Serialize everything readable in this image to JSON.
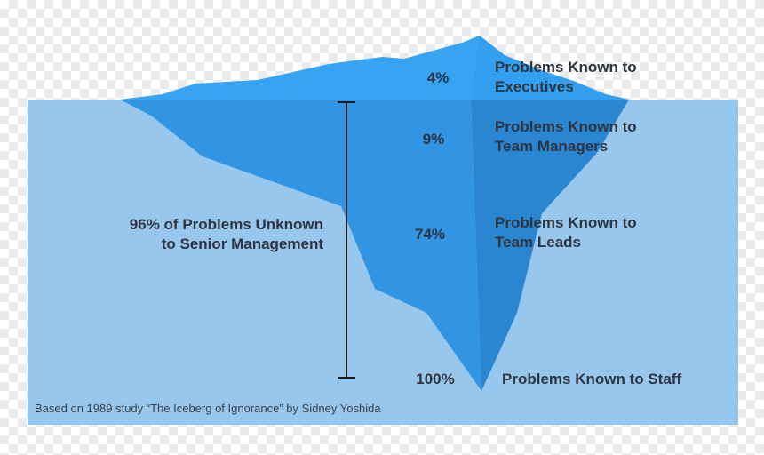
{
  "colors": {
    "water": "#97c7ec",
    "ice_above": "#37a4f2",
    "ice_front": "#3195e3",
    "ice_side": "#2a86d1",
    "bracket": "#1b1b1b",
    "text": "#2e3440"
  },
  "tiers": [
    {
      "percent": "4%",
      "label_line1": "Problems Known to",
      "label_line2": "Executives"
    },
    {
      "percent": "9%",
      "label_line1": "Problems Known to",
      "label_line2": "Team Managers"
    },
    {
      "percent": "74%",
      "label_line1": "Problems Known to",
      "label_line2": "Team Leads"
    },
    {
      "percent": "100%",
      "label_line1": "Problems Known to Staff",
      "label_line2": ""
    }
  ],
  "unknown_label": {
    "line1": "96% of Problems Unknown",
    "line2": "to Senior Management"
  },
  "source": "Based on 1989 study “The Iceberg of Ignorance” by Sidney Yoshida"
}
